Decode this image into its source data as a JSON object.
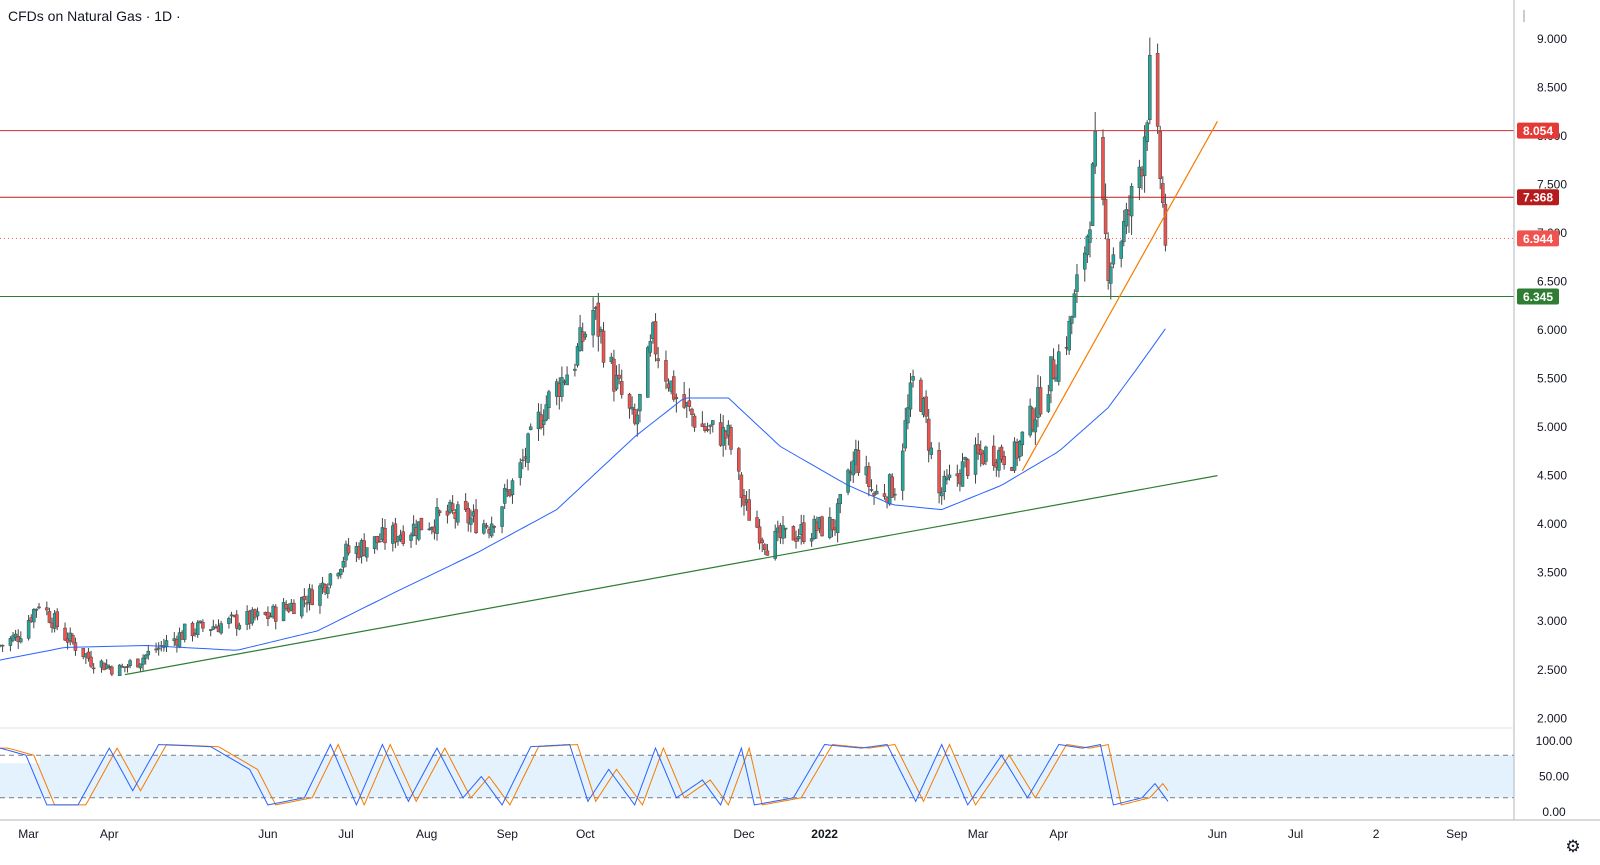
{
  "legend": {
    "title": "CFDs on Natural Gas · 1D ·"
  },
  "colors": {
    "up": "#26a69a",
    "down": "#ef5350",
    "wick": "#444444",
    "ma": "#2962ff",
    "resistance": "#d32f2f",
    "support": "#2e7d32",
    "trend_orange": "#f57c00",
    "k_line": "#2962ff",
    "d_line": "#f57c00",
    "stoch_band": "#e3f2fd"
  },
  "chart_data": {
    "type": "candlestick",
    "y_axis": {
      "range": [
        1.9,
        9.4
      ],
      "ticks": [
        "2.000",
        "2.500",
        "3.000",
        "3.500",
        "4.000",
        "4.500",
        "5.000",
        "5.500",
        "6.000",
        "6.500",
        "7.000",
        "7.500",
        "8.000",
        "8.500",
        "9.000"
      ]
    },
    "x_axis": {
      "range": [
        "2021-02-18",
        "2022-09-23"
      ],
      "ticks": [
        {
          "date": "2021-03-01",
          "label": "Mar"
        },
        {
          "date": "2021-04-01",
          "label": "Apr"
        },
        {
          "date": "2021-06-01",
          "label": "Jun"
        },
        {
          "date": "2021-07-01",
          "label": "Jul"
        },
        {
          "date": "2021-08-01",
          "label": "Aug"
        },
        {
          "date": "2021-09-01",
          "label": "Sep"
        },
        {
          "date": "2021-10-01",
          "label": "Oct"
        },
        {
          "date": "2021-12-01",
          "label": "Dec"
        },
        {
          "date": "2022-01-01",
          "label": "2022"
        },
        {
          "date": "2022-03-01",
          "label": "Mar"
        },
        {
          "date": "2022-04-01",
          "label": "Apr"
        },
        {
          "date": "2022-06-01",
          "label": "Jun"
        },
        {
          "date": "2022-07-01",
          "label": "Jul"
        },
        {
          "date": "2022-08-01",
          "label": "2"
        },
        {
          "date": "2022-09-01",
          "label": "Sep"
        }
      ]
    },
    "series_path": [
      [
        "2021-02-18",
        2.75
      ],
      [
        "2021-02-25",
        2.85
      ],
      [
        "2021-03-05",
        3.2
      ],
      [
        "2021-03-15",
        2.85
      ],
      [
        "2021-03-25",
        2.6
      ],
      [
        "2021-04-05",
        2.5
      ],
      [
        "2021-04-12",
        2.6
      ],
      [
        "2021-05-01",
        2.9
      ],
      [
        "2021-05-20",
        3.0
      ],
      [
        "2021-06-01",
        3.05
      ],
      [
        "2021-06-20",
        3.3
      ],
      [
        "2021-07-01",
        3.7
      ],
      [
        "2021-07-20",
        3.9
      ],
      [
        "2021-08-10",
        4.1
      ],
      [
        "2021-08-25",
        4.0
      ],
      [
        "2021-09-05",
        4.5
      ],
      [
        "2021-09-15",
        5.2
      ],
      [
        "2021-09-27",
        5.7
      ],
      [
        "2021-10-04",
        6.2
      ],
      [
        "2021-10-12",
        5.5
      ],
      [
        "2021-10-20",
        5.0
      ],
      [
        "2021-10-27",
        5.9
      ],
      [
        "2021-11-05",
        5.3
      ],
      [
        "2021-11-15",
        5.0
      ],
      [
        "2021-11-25",
        4.9
      ],
      [
        "2021-12-01",
        4.2
      ],
      [
        "2021-12-10",
        3.8
      ],
      [
        "2021-12-20",
        3.9
      ],
      [
        "2022-01-05",
        4.0
      ],
      [
        "2022-01-13",
        4.7
      ],
      [
        "2022-01-20",
        4.3
      ],
      [
        "2022-01-28",
        4.4
      ],
      [
        "2022-02-05",
        5.6
      ],
      [
        "2022-02-14",
        4.3
      ],
      [
        "2022-02-24",
        4.6
      ],
      [
        "2022-03-05",
        4.75
      ],
      [
        "2022-03-15",
        4.7
      ],
      [
        "2022-03-25",
        5.3
      ],
      [
        "2022-04-05",
        6.0
      ],
      [
        "2022-04-12",
        7.0
      ],
      [
        "2022-04-15",
        7.8
      ],
      [
        "2022-04-20",
        6.7
      ],
      [
        "2022-04-27",
        7.1
      ],
      [
        "2022-05-03",
        7.8
      ],
      [
        "2022-05-06",
        8.6
      ],
      [
        "2022-05-10",
        7.6
      ],
      [
        "2022-05-12",
        6.944
      ]
    ],
    "moving_average": [
      [
        "2021-02-18",
        2.6
      ],
      [
        "2021-03-15",
        2.73
      ],
      [
        "2021-04-15",
        2.75
      ],
      [
        "2021-05-20",
        2.7
      ],
      [
        "2021-06-20",
        2.9
      ],
      [
        "2021-07-20",
        3.3
      ],
      [
        "2021-08-20",
        3.7
      ],
      [
        "2021-09-20",
        4.15
      ],
      [
        "2021-10-20",
        4.9
      ],
      [
        "2021-11-08",
        5.3
      ],
      [
        "2021-11-25",
        5.3
      ],
      [
        "2021-12-15",
        4.8
      ],
      [
        "2022-01-10",
        4.4
      ],
      [
        "2022-01-27",
        4.2
      ],
      [
        "2022-02-15",
        4.15
      ],
      [
        "2022-03-10",
        4.4
      ],
      [
        "2022-04-01",
        4.75
      ],
      [
        "2022-04-20",
        5.2
      ],
      [
        "2022-05-01",
        5.6
      ],
      [
        "2022-05-13",
        6.05
      ]
    ],
    "horizontal_lines": [
      {
        "value": 8.054,
        "label": "8.054",
        "style": "solid",
        "kind": "resistance"
      },
      {
        "value": 7.368,
        "label": "7.368",
        "style": "solid",
        "kind": "resistance-dark"
      },
      {
        "value": 6.944,
        "label": "6.944",
        "style": "dotted",
        "kind": "last-price"
      },
      {
        "value": 6.345,
        "label": "6.345",
        "style": "solid",
        "kind": "support"
      }
    ],
    "trend_lines": [
      {
        "name": "support-trendline",
        "from": [
          "2021-04-07",
          2.45
        ],
        "to": [
          "2022-06-01",
          4.5
        ],
        "color": "green"
      },
      {
        "name": "orange-uptrend",
        "from": [
          "2022-03-18",
          4.55
        ],
        "to": [
          "2022-06-01",
          8.15
        ],
        "color": "orange"
      }
    ]
  },
  "stochastic": {
    "y_ticks": [
      "0.00",
      "50.00",
      "100.00"
    ],
    "upper_band": 80,
    "lower_band": 20,
    "k_path": [
      [
        "2021-02-18",
        90
      ],
      [
        "2021-02-28",
        80
      ],
      [
        "2021-03-08",
        10
      ],
      [
        "2021-03-20",
        10
      ],
      [
        "2021-04-01",
        90
      ],
      [
        "2021-04-10",
        30
      ],
      [
        "2021-04-20",
        95
      ],
      [
        "2021-05-10",
        92
      ],
      [
        "2021-05-25",
        60
      ],
      [
        "2021-06-01",
        10
      ],
      [
        "2021-06-15",
        20
      ],
      [
        "2021-06-25",
        95
      ],
      [
        "2021-07-05",
        10
      ],
      [
        "2021-07-15",
        95
      ],
      [
        "2021-07-25",
        15
      ],
      [
        "2021-08-05",
        90
      ],
      [
        "2021-08-15",
        20
      ],
      [
        "2021-08-22",
        50
      ],
      [
        "2021-08-30",
        10
      ],
      [
        "2021-09-10",
        92
      ],
      [
        "2021-09-25",
        95
      ],
      [
        "2021-10-02",
        15
      ],
      [
        "2021-10-10",
        60
      ],
      [
        "2021-10-20",
        10
      ],
      [
        "2021-10-28",
        90
      ],
      [
        "2021-11-05",
        20
      ],
      [
        "2021-11-15",
        45
      ],
      [
        "2021-11-22",
        10
      ],
      [
        "2021-11-30",
        90
      ],
      [
        "2021-12-05",
        10
      ],
      [
        "2021-12-20",
        20
      ],
      [
        "2022-01-01",
        95
      ],
      [
        "2022-01-15",
        90
      ],
      [
        "2022-01-25",
        95
      ],
      [
        "2022-02-05",
        15
      ],
      [
        "2022-02-15",
        95
      ],
      [
        "2022-02-25",
        10
      ],
      [
        "2022-03-10",
        80
      ],
      [
        "2022-03-20",
        20
      ],
      [
        "2022-04-01",
        95
      ],
      [
        "2022-04-10",
        90
      ],
      [
        "2022-04-17",
        95
      ],
      [
        "2022-04-22",
        10
      ],
      [
        "2022-05-03",
        20
      ],
      [
        "2022-05-08",
        40
      ],
      [
        "2022-05-13",
        15
      ]
    ]
  },
  "axes_ui": {
    "settings_icon": "gear-icon"
  }
}
